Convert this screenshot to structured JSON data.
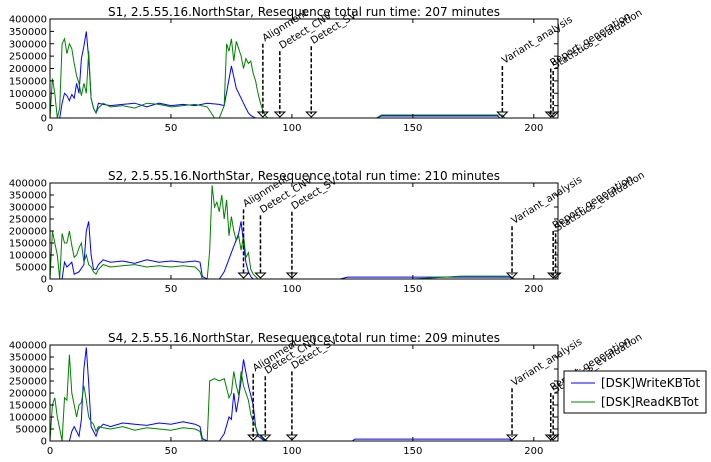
{
  "chart_data": [
    {
      "type": "line",
      "title": "S1, 2.5.55.16.NorthStar, Resequence total run time: 207 minutes",
      "xlabel": "",
      "ylabel": "",
      "xlim": [
        0,
        210
      ],
      "ylim": [
        0,
        400000
      ],
      "xticks": [
        0,
        50,
        100,
        150,
        200
      ],
      "yticks": [
        0,
        50000,
        100000,
        150000,
        200000,
        250000,
        300000,
        350000,
        400000
      ],
      "grid": false,
      "series": [
        {
          "name": "[DSK]WriteKBTot",
          "color": "#0000ff",
          "x": [
            0,
            2,
            4,
            5,
            6,
            7,
            8,
            9,
            10,
            11,
            12,
            13,
            14,
            15,
            16,
            17,
            18,
            19,
            20,
            22,
            25,
            30,
            35,
            40,
            45,
            50,
            55,
            60,
            65,
            70,
            72,
            75,
            77,
            79,
            80,
            81,
            82,
            83,
            84,
            85,
            86,
            87,
            88,
            89,
            90,
            92,
            95,
            100,
            105,
            110,
            115,
            120,
            130,
            135,
            137,
            138,
            140,
            150,
            160,
            170,
            180,
            185,
            186,
            188,
            190,
            200,
            205,
            208,
            210
          ],
          "y": [
            0,
            0,
            0,
            60000,
            100000,
            90000,
            70000,
            95000,
            80000,
            140000,
            100000,
            240000,
            290000,
            350000,
            240000,
            80000,
            40000,
            20000,
            60000,
            55000,
            50000,
            55000,
            60000,
            45000,
            60000,
            50000,
            55000,
            50000,
            60000,
            55000,
            50000,
            210000,
            120000,
            80000,
            60000,
            40000,
            20000,
            10000,
            5000,
            0,
            0,
            0,
            0,
            0,
            0,
            0,
            0,
            0,
            0,
            0,
            0,
            0,
            0,
            0,
            8000,
            8000,
            8000,
            8000,
            8000,
            8000,
            8000,
            8000,
            0,
            0,
            0,
            0,
            0,
            0,
            0
          ]
        },
        {
          "name": "[DSK]ReadKBTot",
          "color": "#008000",
          "x": [
            0,
            1,
            2,
            3,
            4,
            5,
            6,
            7,
            8,
            9,
            10,
            11,
            12,
            13,
            14,
            15,
            16,
            17,
            18,
            19,
            20,
            22,
            25,
            30,
            35,
            40,
            45,
            50,
            55,
            60,
            65,
            68,
            70,
            72,
            73,
            74,
            75,
            76,
            77,
            78,
            79,
            80,
            81,
            82,
            83,
            84,
            85,
            86,
            87,
            88,
            89,
            90,
            95,
            100,
            110,
            120,
            130,
            135,
            137,
            140,
            150,
            160,
            170,
            180,
            185,
            187,
            188,
            190,
            200,
            210
          ],
          "y": [
            0,
            160000,
            100000,
            0,
            40000,
            300000,
            320000,
            260000,
            300000,
            280000,
            220000,
            170000,
            140000,
            90000,
            140000,
            100000,
            270000,
            80000,
            40000,
            20000,
            40000,
            60000,
            45000,
            50000,
            40000,
            60000,
            55000,
            45000,
            50000,
            55000,
            45000,
            0,
            0,
            50000,
            300000,
            270000,
            320000,
            230000,
            310000,
            280000,
            250000,
            200000,
            240000,
            220000,
            230000,
            180000,
            150000,
            100000,
            60000,
            30000,
            10000,
            0,
            0,
            0,
            0,
            0,
            0,
            0,
            12000,
            12000,
            12000,
            12000,
            12000,
            12000,
            12000,
            12000,
            0,
            0,
            0,
            0
          ]
        }
      ],
      "annotations": [
        {
          "label": "Alignment",
          "x": 88,
          "y_top": 300000
        },
        {
          "label": "Detect_CNV",
          "x": 95,
          "y_top": 270000
        },
        {
          "label": "Detect_SV",
          "x": 108,
          "y_top": 290000
        },
        {
          "label": "Variant_analysis",
          "x": 187,
          "y_top": 210000
        },
        {
          "label": "Report_generation",
          "x": 207,
          "y_top": 200000
        },
        {
          "label": "Statistics_evaluation",
          "x": 208,
          "y_top": 190000
        }
      ]
    },
    {
      "type": "line",
      "title": "S2, 2.5.55.16.NorthStar, Resequence total run time: 210 minutes",
      "xlabel": "",
      "ylabel": "",
      "xlim": [
        0,
        210
      ],
      "ylim": [
        0,
        400000
      ],
      "xticks": [
        0,
        50,
        100,
        150,
        200
      ],
      "yticks": [
        0,
        50000,
        100000,
        150000,
        200000,
        250000,
        300000,
        350000,
        400000
      ],
      "grid": false,
      "series": [
        {
          "name": "[DSK]WriteKBTot",
          "color": "#0000ff",
          "x": [
            0,
            3,
            5,
            6,
            7,
            8,
            9,
            10,
            12,
            14,
            15,
            16,
            17,
            18,
            19,
            20,
            22,
            25,
            30,
            35,
            40,
            45,
            50,
            55,
            60,
            62,
            63,
            65,
            70,
            72,
            75,
            78,
            79,
            80,
            81,
            82,
            83,
            84,
            85,
            90,
            100,
            110,
            120,
            123,
            124,
            130,
            150,
            170,
            180,
            190,
            192,
            195,
            200,
            210
          ],
          "y": [
            0,
            0,
            0,
            70000,
            50000,
            60000,
            70000,
            20000,
            30000,
            60000,
            200000,
            240000,
            100000,
            40000,
            40000,
            60000,
            80000,
            70000,
            75000,
            65000,
            80000,
            70000,
            75000,
            70000,
            75000,
            70000,
            10000,
            0,
            0,
            30000,
            110000,
            190000,
            240000,
            150000,
            70000,
            30000,
            10000,
            0,
            0,
            0,
            0,
            0,
            0,
            8000,
            8000,
            8000,
            8000,
            8000,
            8000,
            8000,
            0,
            0,
            0,
            0
          ]
        },
        {
          "name": "[DSK]ReadKBTot",
          "color": "#008000",
          "x": [
            0,
            1,
            2,
            3,
            4,
            5,
            6,
            7,
            8,
            9,
            10,
            11,
            12,
            13,
            14,
            15,
            16,
            17,
            18,
            19,
            20,
            22,
            25,
            30,
            35,
            40,
            45,
            50,
            55,
            60,
            62,
            63,
            65,
            66,
            67,
            68,
            69,
            70,
            71,
            72,
            73,
            74,
            75,
            76,
            77,
            78,
            79,
            80,
            81,
            82,
            83,
            84,
            85,
            86,
            88,
            90,
            100,
            120,
            130,
            150,
            170,
            185,
            190,
            192,
            195,
            210
          ],
          "y": [
            0,
            200000,
            150000,
            100000,
            0,
            190000,
            150000,
            150000,
            200000,
            140000,
            90000,
            100000,
            130000,
            150000,
            70000,
            100000,
            60000,
            50000,
            30000,
            20000,
            40000,
            60000,
            50000,
            55000,
            60000,
            50000,
            55000,
            50000,
            55000,
            50000,
            30000,
            0,
            0,
            120000,
            390000,
            300000,
            320000,
            280000,
            350000,
            250000,
            330000,
            180000,
            260000,
            200000,
            160000,
            180000,
            120000,
            180000,
            90000,
            110000,
            40000,
            20000,
            10000,
            0,
            0,
            0,
            0,
            0,
            0,
            0,
            12000,
            12000,
            12000,
            0,
            0,
            0
          ]
        }
      ],
      "annotations": [
        {
          "label": "Alignment",
          "x": 80,
          "y_top": 290000
        },
        {
          "label": "Detect_CNV",
          "x": 87,
          "y_top": 265000
        },
        {
          "label": "Detect_SV",
          "x": 100,
          "y_top": 280000
        },
        {
          "label": "Variant_analysis",
          "x": 191,
          "y_top": 220000
        },
        {
          "label": "Report_generation",
          "x": 208,
          "y_top": 200000
        },
        {
          "label": "Statistics_evaluation",
          "x": 209,
          "y_top": 190000
        }
      ]
    },
    {
      "type": "line",
      "title": "S4, 2.5.55.16.NorthStar, Resequence total run time: 209 minutes",
      "xlabel": "",
      "ylabel": "",
      "xlim": [
        0,
        210
      ],
      "ylim": [
        0,
        400000
      ],
      "xticks": [
        0,
        50,
        100,
        150,
        200
      ],
      "yticks": [
        0,
        50000,
        100000,
        150000,
        200000,
        250000,
        300000,
        350000,
        400000
      ],
      "grid": false,
      "series": [
        {
          "name": "[DSK]WriteKBTot",
          "color": "#0000ff",
          "x": [
            0,
            5,
            8,
            9,
            10,
            12,
            13,
            14,
            15,
            16,
            17,
            18,
            19,
            20,
            22,
            25,
            30,
            35,
            40,
            45,
            50,
            55,
            60,
            62,
            63,
            65,
            70,
            72,
            74,
            75,
            76,
            77,
            78,
            79,
            80,
            82,
            84,
            85,
            86,
            88,
            90,
            100,
            120,
            125,
            126,
            130,
            150,
            170,
            180,
            190,
            191,
            195,
            210
          ],
          "y": [
            0,
            0,
            0,
            40000,
            60000,
            20000,
            90000,
            300000,
            390000,
            240000,
            60000,
            40000,
            20000,
            50000,
            70000,
            60000,
            75000,
            70000,
            65000,
            75000,
            70000,
            80000,
            70000,
            60000,
            10000,
            0,
            0,
            30000,
            100000,
            90000,
            200000,
            120000,
            180000,
            250000,
            340000,
            230000,
            150000,
            60000,
            20000,
            5000,
            0,
            0,
            0,
            0,
            8000,
            8000,
            8000,
            8000,
            8000,
            8000,
            0,
            0,
            0
          ]
        },
        {
          "name": "[DSK]ReadKBTot",
          "color": "#008000",
          "x": [
            0,
            1,
            2,
            3,
            4,
            5,
            6,
            7,
            8,
            9,
            10,
            11,
            12,
            13,
            14,
            15,
            16,
            17,
            18,
            19,
            20,
            22,
            25,
            30,
            35,
            40,
            45,
            50,
            55,
            60,
            62,
            63,
            65,
            66,
            68,
            70,
            72,
            74,
            75,
            76,
            77,
            78,
            79,
            80,
            81,
            82,
            83,
            84,
            85,
            86,
            88,
            90,
            100,
            120,
            150,
            170,
            190,
            210
          ],
          "y": [
            0,
            150000,
            180000,
            100000,
            50000,
            0,
            180000,
            170000,
            360000,
            200000,
            150000,
            100000,
            150000,
            160000,
            230000,
            170000,
            100000,
            80000,
            70000,
            40000,
            60000,
            55000,
            50000,
            60000,
            45000,
            55000,
            50000,
            45000,
            55000,
            50000,
            40000,
            0,
            0,
            250000,
            260000,
            250000,
            260000,
            180000,
            200000,
            290000,
            230000,
            190000,
            290000,
            230000,
            200000,
            170000,
            110000,
            80000,
            60000,
            30000,
            10000,
            0,
            0,
            0,
            0,
            0,
            0,
            0
          ]
        }
      ],
      "annotations": [
        {
          "label": "Alignment",
          "x": 84,
          "y_top": 280000
        },
        {
          "label": "Detect_CNV",
          "x": 89,
          "y_top": 270000
        },
        {
          "label": "Detect_SV",
          "x": 100,
          "y_top": 290000
        },
        {
          "label": "Variant_analysis",
          "x": 191,
          "y_top": 220000
        },
        {
          "label": "Report_generation",
          "x": 207,
          "y_top": 200000
        },
        {
          "label": "Statistics_evaluation",
          "x": 208,
          "y_top": 190000
        }
      ]
    }
  ],
  "legend": {
    "placement": "right",
    "entries": [
      {
        "label": "[DSK]WriteKBTot",
        "color": "#0000ff"
      },
      {
        "label": "[DSK]ReadKBTot",
        "color": "#008000"
      }
    ]
  }
}
